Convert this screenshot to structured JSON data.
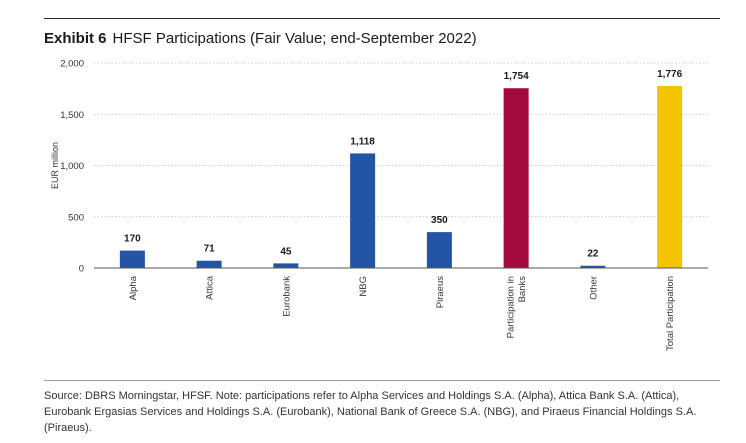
{
  "header": {
    "exhibit_label": "Exhibit 6",
    "title": "HFSF Participations (Fair Value; end-September 2022)"
  },
  "chart_data": {
    "type": "bar",
    "title": "HFSF Participations (Fair Value; end-September 2022)",
    "xlabel": "",
    "ylabel": "EUR million",
    "ylim": [
      0,
      2000
    ],
    "yticks": [
      0,
      500,
      1000,
      1500,
      2000
    ],
    "ytick_labels": [
      "0",
      "500",
      "1,000",
      "1,500",
      "2,000"
    ],
    "grid": true,
    "categories": [
      "Alpha",
      "Attica",
      "Eurobank",
      "NBG",
      "Piraeus",
      "Participation in Banks",
      "Other",
      "Total Participation"
    ],
    "category_lines": [
      [
        "Alpha"
      ],
      [
        "Attica"
      ],
      [
        "Eurobank"
      ],
      [
        "NBG"
      ],
      [
        "Piraeus"
      ],
      [
        "Participation in",
        "Banks"
      ],
      [
        "Other"
      ],
      [
        "Total Participation"
      ]
    ],
    "values": [
      170,
      71,
      45,
      1118,
      350,
      1754,
      22,
      1776
    ],
    "value_labels": [
      "170",
      "71",
      "45",
      "1,118",
      "350",
      "1,754",
      "22",
      "1,776"
    ],
    "colors": [
      "#2455a4",
      "#2455a4",
      "#2455a4",
      "#2455a4",
      "#2455a4",
      "#a50a3c",
      "#2455a4",
      "#f5c400"
    ]
  },
  "footer": {
    "source": "Source: DBRS Morningstar, HFSF. Note: participations refer to Alpha Services and Holdings S.A. (Alpha), Attica Bank S.A. (Attica), Eurobank Ergasias Services and Holdings S.A. (Eurobank), National Bank of Greece S.A. (NBG), and Piraeus Financial Holdings S.A. (Piraeus)."
  }
}
